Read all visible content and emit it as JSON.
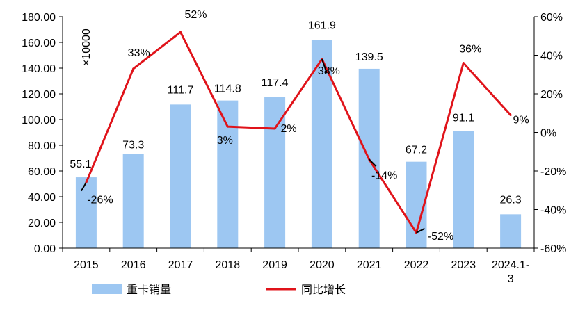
{
  "chart_data": {
    "type": "bar",
    "categories": [
      "2015",
      "2016",
      "2017",
      "2018",
      "2019",
      "2020",
      "2021",
      "2022",
      "2023",
      "2024.1-3"
    ],
    "unit_label": "×10000",
    "series": [
      {
        "name": "重卡销量",
        "type": "bar",
        "axis": "left",
        "color": "#9dc7f2",
        "values": [
          55.1,
          73.3,
          111.7,
          114.8,
          117.4,
          161.9,
          139.5,
          67.2,
          91.1,
          26.3
        ],
        "labels": [
          "55.1",
          "73.3",
          "111.7",
          "114.8",
          "117.4",
          "161.9",
          "139.5",
          "67.2",
          "91.1",
          "26.3"
        ]
      },
      {
        "name": "同比增长",
        "type": "line",
        "axis": "right",
        "color": "#e0131a",
        "values": [
          -26,
          33,
          52,
          3,
          2,
          38,
          -14,
          -52,
          36,
          9
        ],
        "labels": [
          "-26%",
          "33%",
          "52%",
          "3%",
          "2%",
          "38%",
          "-14%",
          "-52%",
          "36%",
          "9%"
        ]
      }
    ],
    "y_left": {
      "min": 0,
      "max": 180,
      "step": 20,
      "ticks": [
        "0.00",
        "20.00",
        "40.00",
        "60.00",
        "80.00",
        "100.00",
        "120.00",
        "140.00",
        "160.00",
        "180.00"
      ]
    },
    "y_right": {
      "min": -60,
      "max": 60,
      "step": 20,
      "ticks": [
        "-60%",
        "-40%",
        "-20%",
        "0%",
        "20%",
        "40%",
        "60%"
      ]
    },
    "grid": false,
    "legend_position": "bottom"
  }
}
